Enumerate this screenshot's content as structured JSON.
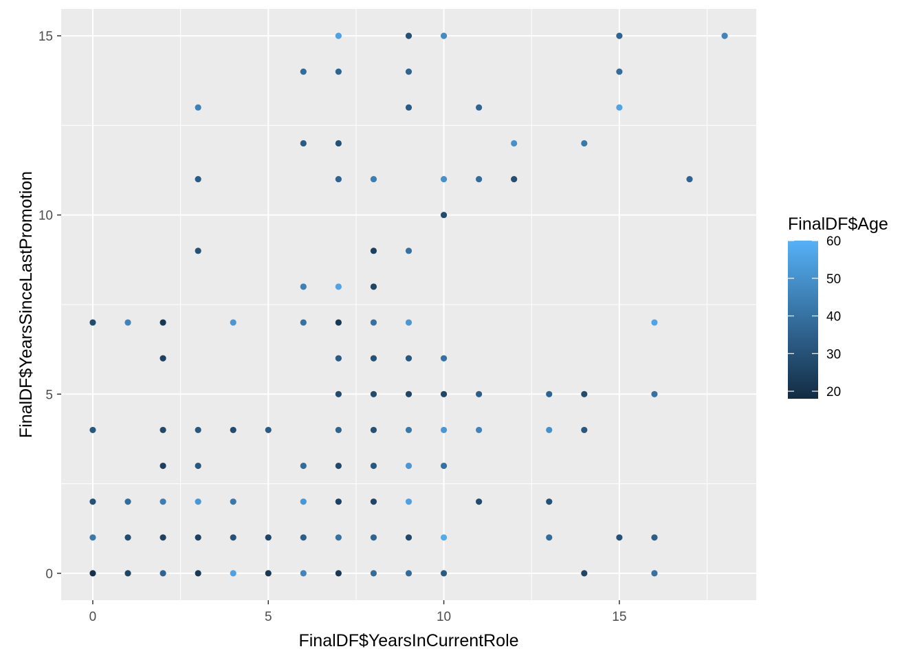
{
  "chart_data": {
    "type": "scatter",
    "xlabel": "FinalDF$YearsInCurrentRole",
    "ylabel": "FinalDF$YearsSinceLastPromotion",
    "xlim": [
      -0.9,
      18.9
    ],
    "ylim": [
      -0.75,
      15.75
    ],
    "x_ticks": [
      0,
      5,
      10,
      15
    ],
    "y_ticks": [
      0,
      5,
      10,
      15
    ],
    "x_tick_labels": [
      "0",
      "5",
      "10",
      "15"
    ],
    "y_tick_labels": [
      "0",
      "5",
      "10",
      "15"
    ],
    "grid": true,
    "panel_background": "#ebebeb",
    "legend": {
      "title": "FinalDF$Age",
      "placement": "right",
      "min": 18,
      "max": 60,
      "ticks": [
        20,
        30,
        40,
        50,
        60
      ],
      "tick_labels": [
        "20",
        "30",
        "40",
        "50",
        "60"
      ],
      "color_low": "#132b43",
      "color_high": "#56b1f7"
    },
    "color_variable": "Age",
    "points": [
      {
        "x": 0,
        "y": 7,
        "age": 28
      },
      {
        "x": 0,
        "y": 4,
        "age": 32
      },
      {
        "x": 0,
        "y": 2,
        "age": 30
      },
      {
        "x": 0,
        "y": 1,
        "age": 42
      },
      {
        "x": 0,
        "y": 0,
        "age": 20
      },
      {
        "x": 1,
        "y": 7,
        "age": 46
      },
      {
        "x": 1,
        "y": 2,
        "age": 38
      },
      {
        "x": 1,
        "y": 1,
        "age": 28
      },
      {
        "x": 1,
        "y": 0,
        "age": 26
      },
      {
        "x": 2,
        "y": 7,
        "age": 22
      },
      {
        "x": 2,
        "y": 6,
        "age": 25
      },
      {
        "x": 2,
        "y": 4,
        "age": 27
      },
      {
        "x": 2,
        "y": 3,
        "age": 24
      },
      {
        "x": 2,
        "y": 2,
        "age": 44
      },
      {
        "x": 2,
        "y": 1,
        "age": 25
      },
      {
        "x": 2,
        "y": 0,
        "age": 36
      },
      {
        "x": 3,
        "y": 13,
        "age": 45
      },
      {
        "x": 3,
        "y": 11,
        "age": 33
      },
      {
        "x": 3,
        "y": 9,
        "age": 30
      },
      {
        "x": 3,
        "y": 4,
        "age": 32
      },
      {
        "x": 3,
        "y": 3,
        "age": 32
      },
      {
        "x": 3,
        "y": 2,
        "age": 52
      },
      {
        "x": 3,
        "y": 1,
        "age": 25
      },
      {
        "x": 3,
        "y": 0,
        "age": 22
      },
      {
        "x": 4,
        "y": 7,
        "age": 52
      },
      {
        "x": 4,
        "y": 4,
        "age": 28
      },
      {
        "x": 4,
        "y": 2,
        "age": 42
      },
      {
        "x": 4,
        "y": 1,
        "age": 30
      },
      {
        "x": 4,
        "y": 0,
        "age": 55
      },
      {
        "x": 5,
        "y": 4,
        "age": 33
      },
      {
        "x": 5,
        "y": 1,
        "age": 26
      },
      {
        "x": 5,
        "y": 0,
        "age": 22
      },
      {
        "x": 6,
        "y": 14,
        "age": 38
      },
      {
        "x": 6,
        "y": 12,
        "age": 33
      },
      {
        "x": 6,
        "y": 8,
        "age": 45
      },
      {
        "x": 6,
        "y": 7,
        "age": 40
      },
      {
        "x": 6,
        "y": 3,
        "age": 38
      },
      {
        "x": 6,
        "y": 2,
        "age": 52
      },
      {
        "x": 6,
        "y": 1,
        "age": 34
      },
      {
        "x": 6,
        "y": 0,
        "age": 46
      },
      {
        "x": 7,
        "y": 15,
        "age": 55
      },
      {
        "x": 7,
        "y": 14,
        "age": 36
      },
      {
        "x": 7,
        "y": 12,
        "age": 30
      },
      {
        "x": 7,
        "y": 11,
        "age": 36
      },
      {
        "x": 7,
        "y": 8,
        "age": 56
      },
      {
        "x": 7,
        "y": 7,
        "age": 22
      },
      {
        "x": 7,
        "y": 6,
        "age": 33
      },
      {
        "x": 7,
        "y": 5,
        "age": 28
      },
      {
        "x": 7,
        "y": 4,
        "age": 36
      },
      {
        "x": 7,
        "y": 3,
        "age": 27
      },
      {
        "x": 7,
        "y": 2,
        "age": 25
      },
      {
        "x": 7,
        "y": 1,
        "age": 40
      },
      {
        "x": 7,
        "y": 0,
        "age": 22
      },
      {
        "x": 8,
        "y": 11,
        "age": 44
      },
      {
        "x": 8,
        "y": 9,
        "age": 24
      },
      {
        "x": 8,
        "y": 8,
        "age": 26
      },
      {
        "x": 8,
        "y": 7,
        "age": 40
      },
      {
        "x": 8,
        "y": 6,
        "age": 30
      },
      {
        "x": 8,
        "y": 5,
        "age": 28
      },
      {
        "x": 8,
        "y": 4,
        "age": 30
      },
      {
        "x": 8,
        "y": 3,
        "age": 32
      },
      {
        "x": 8,
        "y": 2,
        "age": 26
      },
      {
        "x": 8,
        "y": 1,
        "age": 36
      },
      {
        "x": 8,
        "y": 0,
        "age": 38
      },
      {
        "x": 9,
        "y": 15,
        "age": 30
      },
      {
        "x": 9,
        "y": 14,
        "age": 36
      },
      {
        "x": 9,
        "y": 13,
        "age": 33
      },
      {
        "x": 9,
        "y": 9,
        "age": 40
      },
      {
        "x": 9,
        "y": 7,
        "age": 52
      },
      {
        "x": 9,
        "y": 6,
        "age": 32
      },
      {
        "x": 9,
        "y": 5,
        "age": 26
      },
      {
        "x": 9,
        "y": 4,
        "age": 42
      },
      {
        "x": 9,
        "y": 3,
        "age": 52
      },
      {
        "x": 9,
        "y": 2,
        "age": 55
      },
      {
        "x": 9,
        "y": 1,
        "age": 27
      },
      {
        "x": 9,
        "y": 0,
        "age": 38
      },
      {
        "x": 10,
        "y": 15,
        "age": 48
      },
      {
        "x": 10,
        "y": 11,
        "age": 50
      },
      {
        "x": 10,
        "y": 10,
        "age": 28
      },
      {
        "x": 10,
        "y": 6,
        "age": 40
      },
      {
        "x": 10,
        "y": 5,
        "age": 26
      },
      {
        "x": 10,
        "y": 4,
        "age": 52
      },
      {
        "x": 10,
        "y": 3,
        "age": 40
      },
      {
        "x": 10,
        "y": 1,
        "age": 58
      },
      {
        "x": 10,
        "y": 0,
        "age": 33
      },
      {
        "x": 11,
        "y": 13,
        "age": 36
      },
      {
        "x": 11,
        "y": 11,
        "age": 38
      },
      {
        "x": 11,
        "y": 5,
        "age": 34
      },
      {
        "x": 11,
        "y": 4,
        "age": 46
      },
      {
        "x": 11,
        "y": 2,
        "age": 28
      },
      {
        "x": 12,
        "y": 12,
        "age": 50
      },
      {
        "x": 12,
        "y": 11,
        "age": 29
      },
      {
        "x": 13,
        "y": 5,
        "age": 36
      },
      {
        "x": 13,
        "y": 4,
        "age": 50
      },
      {
        "x": 13,
        "y": 2,
        "age": 30
      },
      {
        "x": 13,
        "y": 1,
        "age": 38
      },
      {
        "x": 14,
        "y": 12,
        "age": 42
      },
      {
        "x": 14,
        "y": 5,
        "age": 28
      },
      {
        "x": 14,
        "y": 4,
        "age": 32
      },
      {
        "x": 14,
        "y": 0,
        "age": 26
      },
      {
        "x": 15,
        "y": 15,
        "age": 36
      },
      {
        "x": 15,
        "y": 14,
        "age": 38
      },
      {
        "x": 15,
        "y": 13,
        "age": 56
      },
      {
        "x": 15,
        "y": 1,
        "age": 30
      },
      {
        "x": 16,
        "y": 7,
        "age": 56
      },
      {
        "x": 16,
        "y": 5,
        "age": 40
      },
      {
        "x": 16,
        "y": 1,
        "age": 34
      },
      {
        "x": 16,
        "y": 0,
        "age": 40
      },
      {
        "x": 17,
        "y": 11,
        "age": 36
      },
      {
        "x": 18,
        "y": 15,
        "age": 46
      }
    ]
  }
}
